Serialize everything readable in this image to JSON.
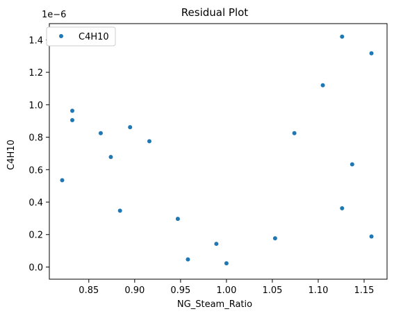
{
  "chart_data": {
    "type": "scatter",
    "title": "Residual Plot",
    "xlabel": "NG_Steam_Ratio",
    "ylabel": "C4H10",
    "y_offset_label": "1e−6",
    "xlim": [
      0.807,
      1.175
    ],
    "ylim": [
      -0.075,
      1.5
    ],
    "x_ticks": [
      0.85,
      0.9,
      0.95,
      1.0,
      1.05,
      1.1,
      1.15
    ],
    "x_tick_labels": [
      "0.85",
      "0.90",
      "0.95",
      "1.00",
      "1.05",
      "1.10",
      "1.15"
    ],
    "y_ticks": [
      0.0,
      0.2,
      0.4,
      0.6,
      0.8,
      1.0,
      1.2,
      1.4
    ],
    "y_tick_labels": [
      "0.0",
      "0.2",
      "0.4",
      "0.6",
      "0.8",
      "1.0",
      "1.2",
      "1.4"
    ],
    "grid": false,
    "legend_position": "top-left",
    "series": [
      {
        "name": "C4H10",
        "color": "#1f77b4",
        "points": [
          {
            "x": 0.821,
            "y": 0.535
          },
          {
            "x": 0.832,
            "y": 0.963
          },
          {
            "x": 0.832,
            "y": 0.905
          },
          {
            "x": 0.863,
            "y": 0.825
          },
          {
            "x": 0.874,
            "y": 0.678
          },
          {
            "x": 0.884,
            "y": 0.347
          },
          {
            "x": 0.895,
            "y": 0.862
          },
          {
            "x": 0.916,
            "y": 0.775
          },
          {
            "x": 0.947,
            "y": 0.297
          },
          {
            "x": 0.958,
            "y": 0.047
          },
          {
            "x": 0.989,
            "y": 0.143
          },
          {
            "x": 1.0,
            "y": 0.023
          },
          {
            "x": 1.053,
            "y": 0.177
          },
          {
            "x": 1.074,
            "y": 0.825
          },
          {
            "x": 1.105,
            "y": 1.12
          },
          {
            "x": 1.126,
            "y": 1.42
          },
          {
            "x": 1.126,
            "y": 0.362
          },
          {
            "x": 1.137,
            "y": 0.633
          },
          {
            "x": 1.158,
            "y": 1.317
          },
          {
            "x": 1.158,
            "y": 0.188
          }
        ]
      }
    ]
  }
}
